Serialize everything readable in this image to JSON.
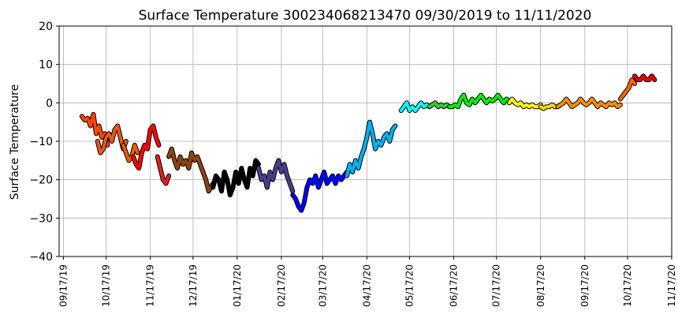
{
  "chart_data": {
    "type": "line",
    "title": "Surface Temperature 300234068213470  09/30/2019 to 11/11/2020",
    "ylabel": "Surface Temperature",
    "xlabel": "",
    "ylim": [
      -40,
      20
    ],
    "yticks": [
      20,
      10,
      0,
      -10,
      -20,
      -30,
      -40
    ],
    "ytick_labels": [
      "20",
      "10",
      "0",
      "−10",
      "−20",
      "−30",
      "−40"
    ],
    "xlim_days_from_first_tick": [
      -3,
      427
    ],
    "xticks": [
      "09/17/19",
      "10/17/19",
      "11/17/19",
      "12/17/19",
      "01/17/20",
      "02/17/20",
      "03/17/20",
      "04/17/20",
      "05/17/20",
      "06/17/20",
      "07/17/20",
      "08/17/20",
      "09/17/20",
      "10/17/20",
      "11/17/20"
    ],
    "xtick_days": [
      0,
      30,
      61,
      91,
      122,
      153,
      182,
      213,
      243,
      274,
      304,
      335,
      366,
      396,
      427
    ],
    "grid": true,
    "series": [
      {
        "color": "#ff4500",
        "x": [
          13,
          15,
          17,
          19,
          21,
          23,
          25,
          27,
          29,
          31
        ],
        "y": [
          -3.5,
          -4.5,
          -4,
          -6,
          -3,
          -8,
          -6,
          -9,
          -8,
          -11
        ]
      },
      {
        "color": "#e8581c",
        "x": [
          24,
          26,
          28,
          30,
          32,
          34,
          36,
          38,
          40,
          42,
          44
        ],
        "y": [
          -10,
          -13,
          -12,
          -9,
          -8,
          -10,
          -7,
          -6,
          -9,
          -12,
          -10
        ]
      },
      {
        "color": "#f05a00",
        "x": [
          42,
          44,
          46,
          48,
          50,
          52
        ],
        "y": [
          -11,
          -13,
          -15,
          -14,
          -11,
          -13
        ]
      },
      {
        "color": "#ff0000",
        "x": [
          49,
          51,
          53,
          55,
          57,
          59,
          61,
          63,
          65,
          67
        ],
        "y": [
          -14,
          -16,
          -17,
          -13,
          -11,
          -12,
          -7,
          -6,
          -9,
          -11
        ]
      },
      {
        "color": "#dd2222",
        "x": [
          66,
          68,
          70,
          72,
          74
        ],
        "y": [
          -14,
          -17,
          -20,
          -21,
          -19
        ]
      },
      {
        "color": "#8b4513",
        "x": [
          74,
          76,
          78,
          80,
          82,
          84,
          86,
          88,
          90,
          92,
          94,
          96,
          98,
          100,
          102,
          105
        ],
        "y": [
          -14,
          -12,
          -15,
          -17,
          -14,
          -16,
          -15,
          -17,
          -13,
          -15,
          -14,
          -16,
          -18,
          -20,
          -23,
          -21
        ]
      },
      {
        "color": "#000000",
        "x": [
          105,
          107,
          109,
          111,
          113,
          115,
          117,
          119,
          121,
          123,
          125,
          127,
          129,
          131,
          133,
          135,
          137
        ],
        "y": [
          -22,
          -19,
          -20,
          -23,
          -18,
          -20,
          -24,
          -22,
          -18,
          -21,
          -17,
          -20,
          -22,
          -17,
          -19,
          -15,
          -16
        ]
      },
      {
        "color": "#483d8b",
        "x": [
          137,
          139,
          141,
          143,
          145,
          147,
          149,
          151,
          153,
          155,
          157,
          159,
          161
        ],
        "y": [
          -17,
          -20,
          -19,
          -22,
          -18,
          -20,
          -17,
          -15,
          -18,
          -16,
          -19,
          -21,
          -23
        ]
      },
      {
        "color": "#0000ff",
        "x": [
          161,
          163,
          165,
          167,
          169,
          171,
          173,
          175,
          177,
          179,
          181,
          183,
          185,
          187,
          189,
          191,
          193,
          195,
          197,
          199
        ],
        "y": [
          -24,
          -25,
          -27,
          -28,
          -26,
          -22,
          -20,
          -21,
          -19,
          -22,
          -20,
          -18,
          -21,
          -20,
          -19,
          -21,
          -19,
          -20,
          -19,
          -18
        ]
      },
      {
        "color": "#00b0f0",
        "x": [
          199,
          201,
          203,
          205,
          207,
          209,
          211,
          213,
          215,
          217,
          219,
          221,
          223,
          225,
          227,
          229,
          231,
          233
        ],
        "y": [
          -19,
          -16,
          -18,
          -15,
          -17,
          -14,
          -12,
          -9,
          -5,
          -8,
          -12,
          -10,
          -11,
          -9,
          -8,
          -10,
          -7,
          -6
        ]
      },
      {
        "color": "#00ffff",
        "x": [
          237,
          239,
          241,
          243,
          245,
          247,
          249,
          251,
          253,
          255,
          257
        ],
        "y": [
          -2,
          -1,
          0,
          -2,
          -1,
          -2,
          -1,
          0,
          -1,
          -0.5,
          -1
        ]
      },
      {
        "color": "#32cd32",
        "x": [
          257,
          259,
          261,
          263,
          265,
          267,
          269,
          271
        ],
        "y": [
          -1,
          -0.5,
          0,
          -1,
          -0.5,
          -1,
          -0.5,
          -1
        ]
      },
      {
        "color": "#00ee00",
        "x": [
          271,
          273,
          275,
          277,
          279,
          281,
          283,
          285,
          287,
          289,
          291,
          293,
          295,
          297,
          299,
          301,
          303,
          305,
          307,
          309,
          311,
          313
        ],
        "y": [
          -1,
          -1,
          -0.5,
          -1,
          1,
          2,
          0,
          -0.5,
          1,
          0,
          1,
          2,
          1,
          0,
          1,
          0.5,
          1,
          2,
          1,
          0,
          1,
          0.5
        ]
      },
      {
        "color": "#ffff00",
        "x": [
          313,
          315,
          317,
          319,
          321,
          323,
          325,
          327,
          329,
          331,
          333,
          335
        ],
        "y": [
          0,
          1,
          0,
          -0.5,
          0,
          -1,
          -0.5,
          -1,
          -0.5,
          -1,
          -1,
          -0.5
        ]
      },
      {
        "color": "#ffd700",
        "x": [
          335,
          337,
          339,
          341,
          343,
          345,
          347
        ],
        "y": [
          -1,
          -1.5,
          -1,
          -1,
          -0.5,
          -1,
          -1
        ]
      },
      {
        "color": "#ff8c00",
        "x": [
          347,
          349,
          351,
          353,
          355,
          357,
          359,
          361,
          363,
          365,
          367,
          369,
          371,
          373,
          375,
          377,
          379,
          381,
          383,
          385,
          387,
          389,
          391
        ],
        "y": [
          -1,
          -0.5,
          0,
          1,
          0,
          -1,
          -0.5,
          0,
          1,
          0,
          -0.5,
          0,
          1,
          0,
          -1,
          0,
          -0.5,
          -1,
          0,
          -0.5,
          0,
          -1,
          -0.5
        ]
      },
      {
        "color": "#ff6600",
        "x": [
          391,
          393,
          395,
          397,
          399,
          401
        ],
        "y": [
          1,
          2,
          3,
          4,
          6,
          5
        ]
      },
      {
        "color": "#e00000",
        "x": [
          401,
          403,
          405,
          407,
          409,
          411,
          413,
          415
        ],
        "y": [
          7,
          6,
          6,
          7,
          6,
          6,
          7,
          6
        ]
      }
    ]
  }
}
